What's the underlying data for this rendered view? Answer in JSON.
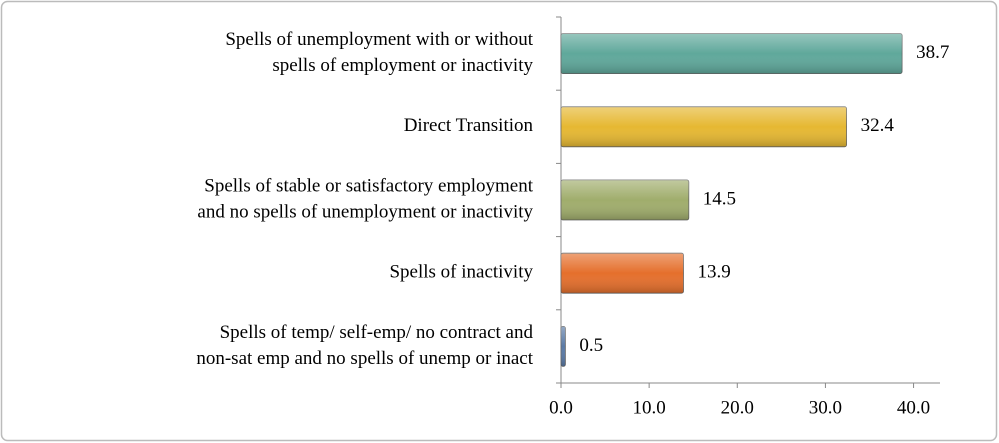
{
  "chart_data": {
    "type": "bar",
    "orientation": "horizontal",
    "categories": [
      [
        "Spells of unemployment with or without",
        "spells of employment or inactivity"
      ],
      [
        "Direct Transition"
      ],
      [
        "Spells of stable or satisfactory employment",
        "and no spells of unemployment or inactivity"
      ],
      [
        "Spells of inactivity"
      ],
      [
        "Spells of temp/ self-emp/ no contract and",
        "non-sat emp and no spells of unemp or inact"
      ]
    ],
    "values": [
      38.7,
      32.4,
      14.5,
      13.9,
      0.5
    ],
    "colors": [
      "#5fa89b",
      "#e6b832",
      "#a0ad6c",
      "#e56f2c",
      "#5a7aa6"
    ],
    "xlim": [
      0,
      43
    ],
    "xticks": [
      {
        "value": 0,
        "label": "0.0"
      },
      {
        "value": 10,
        "label": "10.0"
      },
      {
        "value": 20,
        "label": "20.0"
      },
      {
        "value": 30,
        "label": "30.0"
      },
      {
        "value": 40,
        "label": "40.0"
      }
    ],
    "grid": false
  }
}
